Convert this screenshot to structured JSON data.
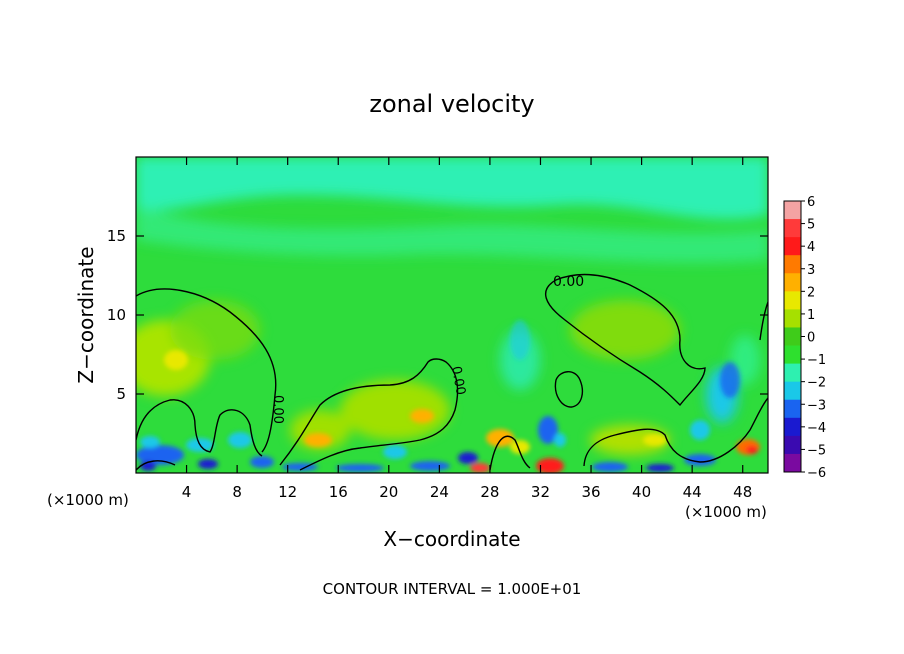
{
  "chart_data": {
    "type": "heatmap",
    "title": "zonal velocity",
    "xlabel": "X−coordinate",
    "ylabel": "Z−coordinate",
    "x_unit_left": "(×1000 m)",
    "x_unit_right": "(×1000 m)",
    "footer": "CONTOUR INTERVAL = 1.000E+01",
    "contour_label": "0.00",
    "xlim": [
      0,
      50
    ],
    "ylim": [
      0,
      20
    ],
    "x_ticks": [
      4,
      8,
      12,
      16,
      20,
      24,
      28,
      32,
      36,
      40,
      44,
      48
    ],
    "x_tick_labels": [
      "4",
      "8",
      "12",
      "16",
      "20",
      "24",
      "28",
      "32",
      "36",
      "40",
      "44",
      "48"
    ],
    "y_ticks": [
      5,
      10,
      15
    ],
    "y_tick_labels": [
      "5",
      "10",
      "15"
    ],
    "colorbar": {
      "levels": [
        6,
        5,
        4,
        3,
        2,
        1,
        0,
        -1,
        -2,
        -3,
        -4,
        -5,
        -6
      ],
      "labels": [
        "6",
        "5",
        "4",
        "3",
        "2",
        "1",
        "0",
        "−1",
        "−2",
        "−3",
        "−4",
        "−5",
        "−6"
      ],
      "colors": [
        "#f4a3a3",
        "#ff3a3a",
        "#ff1a1a",
        "#ff7a00",
        "#ffb000",
        "#e8e800",
        "#a6e000",
        "#3fcc1a",
        "#2ee02e",
        "#2ef0b0",
        "#1ac8e8",
        "#1a64f0",
        "#1a1ad0",
        "#3a0ab0",
        "#7a0aa0"
      ]
    },
    "field": {
      "background": "#2edc3c",
      "top_band": "#2ef0b4",
      "features": [
        {
          "x": 3.5,
          "y": 7.5,
          "value": 0.9
        },
        {
          "x": 14.5,
          "y": 2.0,
          "value": 2.2
        },
        {
          "x": 22.5,
          "y": 3.5,
          "value": 2.0
        },
        {
          "x": 38.5,
          "y": 9.5,
          "value": 0.6
        },
        {
          "x": 40.0,
          "y": 2.0,
          "value": 1.8
        },
        {
          "x": 48.5,
          "y": 1.8,
          "value": 3.0
        },
        {
          "x": 32.5,
          "y": 0.4,
          "value": 4.5
        },
        {
          "x": 27.0,
          "y": 0.4,
          "value": 3.0
        },
        {
          "x": 33.0,
          "y": 2.5,
          "value": -3.0
        },
        {
          "x": 3.0,
          "y": 1.0,
          "value": -4.0
        },
        {
          "x": 46.0,
          "y": 5.0,
          "value": -2.5
        },
        {
          "x": 30.0,
          "y": 6.5,
          "value": -1.5
        }
      ]
    }
  }
}
